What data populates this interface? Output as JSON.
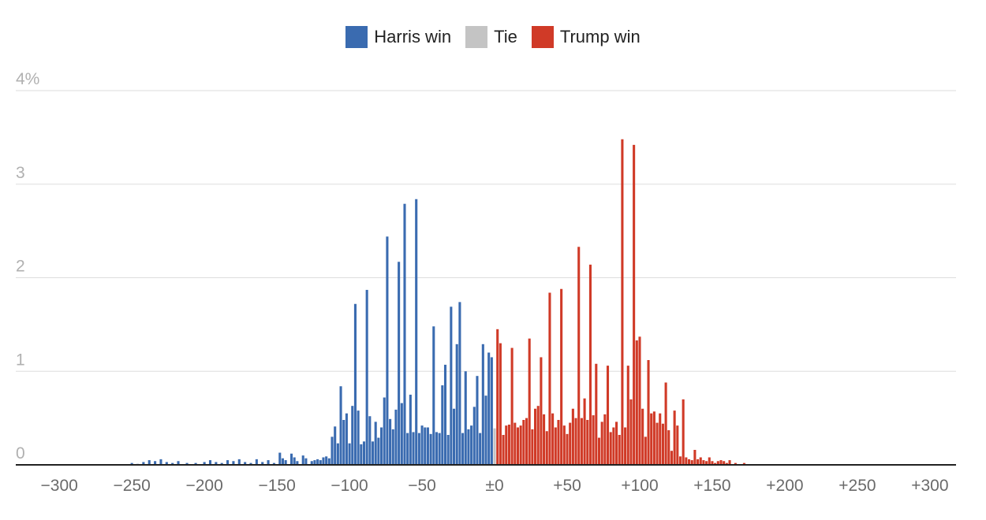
{
  "colors": {
    "harris": "#3a6bb0",
    "tie": "#c4c4c4",
    "trump": "#d03a27",
    "grid": "#dddddd",
    "axis": "#222222"
  },
  "legend": [
    {
      "key": "harris",
      "label": "Harris win",
      "color": "#3a6bb0"
    },
    {
      "key": "tie",
      "label": "Tie",
      "color": "#c4c4c4"
    },
    {
      "key": "trump",
      "label": "Trump win",
      "color": "#d03a27"
    }
  ],
  "chart_data": {
    "type": "bar",
    "title": "",
    "xlabel": "",
    "ylabel": "",
    "xlim": [
      -330,
      318
    ],
    "ylim": [
      0,
      4
    ],
    "y_ticks": [
      {
        "value": 0,
        "label": "0"
      },
      {
        "value": 1,
        "label": "1"
      },
      {
        "value": 2,
        "label": "2"
      },
      {
        "value": 3,
        "label": "3"
      },
      {
        "value": 4,
        "label": "4%"
      }
    ],
    "x_ticks": [
      {
        "value": -300,
        "label": "−300"
      },
      {
        "value": -250,
        "label": "−250"
      },
      {
        "value": -200,
        "label": "−200"
      },
      {
        "value": -150,
        "label": "−150"
      },
      {
        "value": -100,
        "label": "−100"
      },
      {
        "value": -50,
        "label": "−50"
      },
      {
        "value": 0,
        "label": "±0"
      },
      {
        "value": 50,
        "label": "+50"
      },
      {
        "value": 100,
        "label": "+100"
      },
      {
        "value": 150,
        "label": "+150"
      },
      {
        "value": 200,
        "label": "+200"
      },
      {
        "value": 250,
        "label": "+250"
      },
      {
        "value": 300,
        "label": "+300"
      }
    ],
    "bar_width": 2,
    "series": [
      {
        "name": "Harris win",
        "color": "#3a6bb0",
        "points": [
          [
            -250,
            0.02
          ],
          [
            -246,
            0.01
          ],
          [
            -242,
            0.03
          ],
          [
            -238,
            0.05
          ],
          [
            -234,
            0.04
          ],
          [
            -230,
            0.06
          ],
          [
            -226,
            0.03
          ],
          [
            -222,
            0.02
          ],
          [
            -218,
            0.04
          ],
          [
            -212,
            0.02
          ],
          [
            -206,
            0.02
          ],
          [
            -200,
            0.03
          ],
          [
            -196,
            0.05
          ],
          [
            -192,
            0.03
          ],
          [
            -188,
            0.02
          ],
          [
            -184,
            0.05
          ],
          [
            -180,
            0.04
          ],
          [
            -176,
            0.06
          ],
          [
            -172,
            0.03
          ],
          [
            -168,
            0.02
          ],
          [
            -164,
            0.06
          ],
          [
            -160,
            0.03
          ],
          [
            -156,
            0.05
          ],
          [
            -152,
            0.02
          ],
          [
            -148,
            0.13
          ],
          [
            -146,
            0.07
          ],
          [
            -144,
            0.05
          ],
          [
            -140,
            0.12
          ],
          [
            -138,
            0.08
          ],
          [
            -136,
            0.04
          ],
          [
            -132,
            0.1
          ],
          [
            -130,
            0.07
          ],
          [
            -126,
            0.04
          ],
          [
            -124,
            0.05
          ],
          [
            -122,
            0.06
          ],
          [
            -120,
            0.05
          ],
          [
            -118,
            0.08
          ],
          [
            -116,
            0.09
          ],
          [
            -114,
            0.07
          ],
          [
            -112,
            0.3
          ],
          [
            -110,
            0.41
          ],
          [
            -108,
            0.23
          ],
          [
            -106,
            0.84
          ],
          [
            -104,
            0.48
          ],
          [
            -102,
            0.55
          ],
          [
            -100,
            0.23
          ],
          [
            -98,
            0.63
          ],
          [
            -96,
            1.72
          ],
          [
            -94,
            0.58
          ],
          [
            -92,
            0.22
          ],
          [
            -90,
            0.25
          ],
          [
            -88,
            1.87
          ],
          [
            -86,
            0.52
          ],
          [
            -84,
            0.25
          ],
          [
            -82,
            0.46
          ],
          [
            -80,
            0.29
          ],
          [
            -78,
            0.4
          ],
          [
            -76,
            0.72
          ],
          [
            -74,
            2.44
          ],
          [
            -72,
            0.49
          ],
          [
            -70,
            0.38
          ],
          [
            -68,
            0.59
          ],
          [
            -66,
            2.17
          ],
          [
            -64,
            0.66
          ],
          [
            -62,
            2.79
          ],
          [
            -60,
            0.34
          ],
          [
            -58,
            0.75
          ],
          [
            -56,
            0.35
          ],
          [
            -54,
            2.84
          ],
          [
            -52,
            0.34
          ],
          [
            -50,
            0.42
          ],
          [
            -48,
            0.4
          ],
          [
            -46,
            0.4
          ],
          [
            -44,
            0.33
          ],
          [
            -42,
            1.48
          ],
          [
            -40,
            0.35
          ],
          [
            -38,
            0.34
          ],
          [
            -36,
            0.85
          ],
          [
            -34,
            1.07
          ],
          [
            -32,
            0.32
          ],
          [
            -30,
            1.69
          ],
          [
            -28,
            0.6
          ],
          [
            -26,
            1.29
          ],
          [
            -24,
            1.74
          ],
          [
            -22,
            0.34
          ],
          [
            -20,
            1.0
          ],
          [
            -18,
            0.38
          ],
          [
            -16,
            0.42
          ],
          [
            -14,
            0.62
          ],
          [
            -12,
            0.95
          ],
          [
            -10,
            0.34
          ],
          [
            -8,
            1.29
          ],
          [
            -6,
            0.74
          ],
          [
            -4,
            1.2
          ],
          [
            -2,
            1.15
          ]
        ]
      },
      {
        "name": "Tie",
        "color": "#c4c4c4",
        "points": [
          [
            0,
            0.39
          ]
        ]
      },
      {
        "name": "Trump win",
        "color": "#d03a27",
        "points": [
          [
            2,
            1.45
          ],
          [
            4,
            1.3
          ],
          [
            6,
            0.32
          ],
          [
            8,
            0.42
          ],
          [
            10,
            0.43
          ],
          [
            12,
            1.25
          ],
          [
            14,
            0.45
          ],
          [
            16,
            0.4
          ],
          [
            18,
            0.42
          ],
          [
            20,
            0.48
          ],
          [
            22,
            0.5
          ],
          [
            24,
            1.35
          ],
          [
            26,
            0.38
          ],
          [
            28,
            0.6
          ],
          [
            30,
            0.63
          ],
          [
            32,
            1.15
          ],
          [
            34,
            0.54
          ],
          [
            36,
            0.36
          ],
          [
            38,
            1.84
          ],
          [
            40,
            0.55
          ],
          [
            42,
            0.4
          ],
          [
            44,
            0.48
          ],
          [
            46,
            1.88
          ],
          [
            48,
            0.42
          ],
          [
            50,
            0.33
          ],
          [
            52,
            0.45
          ],
          [
            54,
            0.6
          ],
          [
            56,
            0.5
          ],
          [
            58,
            2.33
          ],
          [
            60,
            0.5
          ],
          [
            62,
            0.71
          ],
          [
            64,
            0.48
          ],
          [
            66,
            2.14
          ],
          [
            68,
            0.53
          ],
          [
            70,
            1.08
          ],
          [
            72,
            0.29
          ],
          [
            74,
            0.46
          ],
          [
            76,
            0.54
          ],
          [
            78,
            1.06
          ],
          [
            80,
            0.35
          ],
          [
            82,
            0.4
          ],
          [
            84,
            0.46
          ],
          [
            86,
            0.32
          ],
          [
            88,
            3.48
          ],
          [
            90,
            0.4
          ],
          [
            92,
            1.06
          ],
          [
            94,
            0.7
          ],
          [
            96,
            3.42
          ],
          [
            98,
            1.33
          ],
          [
            100,
            1.37
          ],
          [
            102,
            0.6
          ],
          [
            104,
            0.3
          ],
          [
            106,
            1.12
          ],
          [
            108,
            0.55
          ],
          [
            110,
            0.57
          ],
          [
            112,
            0.45
          ],
          [
            114,
            0.55
          ],
          [
            116,
            0.44
          ],
          [
            118,
            0.88
          ],
          [
            120,
            0.37
          ],
          [
            122,
            0.15
          ],
          [
            124,
            0.58
          ],
          [
            126,
            0.42
          ],
          [
            128,
            0.09
          ],
          [
            130,
            0.7
          ],
          [
            132,
            0.08
          ],
          [
            134,
            0.06
          ],
          [
            136,
            0.05
          ],
          [
            138,
            0.16
          ],
          [
            140,
            0.06
          ],
          [
            142,
            0.08
          ],
          [
            144,
            0.05
          ],
          [
            146,
            0.04
          ],
          [
            148,
            0.08
          ],
          [
            150,
            0.04
          ],
          [
            152,
            0.02
          ],
          [
            154,
            0.04
          ],
          [
            156,
            0.05
          ],
          [
            158,
            0.04
          ],
          [
            160,
            0.02
          ],
          [
            162,
            0.05
          ],
          [
            166,
            0.02
          ],
          [
            172,
            0.02
          ]
        ]
      }
    ]
  }
}
